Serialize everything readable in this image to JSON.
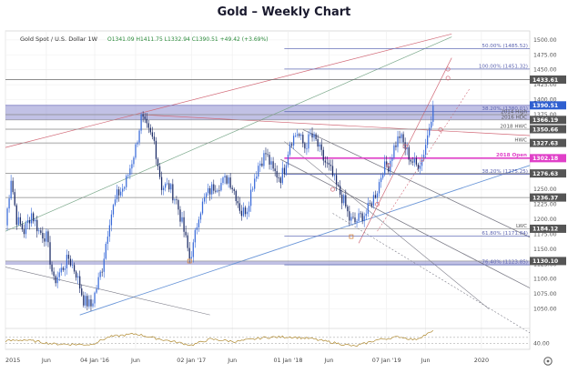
{
  "header": {
    "title": "Gold – Weekly Chart"
  },
  "chart_data": {
    "type": "candlestick",
    "title": "Gold – Weekly Chart",
    "instrument_label": "Gold Spot / U.S. Dollar  1W",
    "ohlc_readout": "O1341.09  H1411.75  L1332.94  C1390.51  +49.42 (+3.69%)",
    "ylim": [
      1025,
      1515
    ],
    "y_ticks": [
      1050,
      1075,
      1100,
      1125,
      1150,
      1175,
      1200,
      1225,
      1250,
      1275,
      1300,
      1325,
      1350,
      1375,
      1400,
      1425,
      1450,
      1475,
      1500
    ],
    "x_ticks": [
      "2015",
      "Jun",
      "04 Jan '16",
      "Jun",
      "02 Jan '17",
      "Jun",
      "01 Jan '18",
      "Jun",
      "07 Jan '19",
      "Jun",
      "2020"
    ],
    "x_tick_weeks": [
      0,
      22,
      48,
      70,
      100,
      122,
      152,
      174,
      205,
      226,
      256
    ],
    "total_weeks": 282,
    "series": [
      {
        "kind": "weekly_close",
        "anchors": [
          [
            0,
            1190
          ],
          [
            3,
            1270
          ],
          [
            6,
            1200
          ],
          [
            10,
            1180
          ],
          [
            14,
            1210
          ],
          [
            18,
            1180
          ],
          [
            22,
            1170
          ],
          [
            26,
            1095
          ],
          [
            30,
            1115
          ],
          [
            34,
            1135
          ],
          [
            38,
            1110
          ],
          [
            42,
            1065
          ],
          [
            46,
            1055
          ],
          [
            48,
            1075
          ],
          [
            52,
            1120
          ],
          [
            56,
            1200
          ],
          [
            60,
            1240
          ],
          [
            64,
            1255
          ],
          [
            66,
            1275
          ],
          [
            70,
            1320
          ],
          [
            73,
            1370
          ],
          [
            77,
            1345
          ],
          [
            80,
            1330
          ],
          [
            84,
            1255
          ],
          [
            88,
            1255
          ],
          [
            92,
            1230
          ],
          [
            96,
            1180
          ],
          [
            99,
            1135
          ],
          [
            101,
            1155
          ],
          [
            104,
            1210
          ],
          [
            108,
            1240
          ],
          [
            112,
            1255
          ],
          [
            116,
            1260
          ],
          [
            120,
            1270
          ],
          [
            124,
            1240
          ],
          [
            127,
            1210
          ],
          [
            130,
            1220
          ],
          [
            133,
            1260
          ],
          [
            136,
            1290
          ],
          [
            140,
            1310
          ],
          [
            144,
            1280
          ],
          [
            148,
            1270
          ],
          [
            150,
            1285
          ],
          [
            153,
            1330
          ],
          [
            157,
            1345
          ],
          [
            161,
            1320
          ],
          [
            164,
            1340
          ],
          [
            167,
            1330
          ],
          [
            171,
            1300
          ],
          [
            175,
            1280
          ],
          [
            178,
            1255
          ],
          [
            182,
            1230
          ],
          [
            185,
            1200
          ],
          [
            188,
            1195
          ],
          [
            191,
            1205
          ],
          [
            194,
            1210
          ],
          [
            197,
            1230
          ],
          [
            200,
            1250
          ],
          [
            203,
            1285
          ],
          [
            206,
            1290
          ],
          [
            209,
            1320
          ],
          [
            212,
            1340
          ],
          [
            215,
            1320
          ],
          [
            218,
            1300
          ],
          [
            221,
            1290
          ],
          [
            224,
            1300
          ],
          [
            227,
            1340
          ],
          [
            230,
            1390
          ]
        ],
        "rsi_anchors": [
          [
            0,
            48
          ],
          [
            10,
            52
          ],
          [
            26,
            38
          ],
          [
            46,
            36
          ],
          [
            56,
            62
          ],
          [
            70,
            72
          ],
          [
            80,
            58
          ],
          [
            92,
            44
          ],
          [
            100,
            34
          ],
          [
            110,
            54
          ],
          [
            124,
            46
          ],
          [
            140,
            60
          ],
          [
            153,
            62
          ],
          [
            164,
            56
          ],
          [
            175,
            44
          ],
          [
            188,
            30
          ],
          [
            200,
            52
          ],
          [
            212,
            62
          ],
          [
            220,
            52
          ],
          [
            230,
            80
          ]
        ]
      }
    ],
    "horizontal_levels": [
      {
        "price": 1485.52,
        "label": "50.00% (1485.52)",
        "style": "fib"
      },
      {
        "price": 1451.32,
        "label": "100.00% (1451.32)",
        "style": "fib"
      },
      {
        "price": 1433.61,
        "label": "",
        "style": "level"
      },
      {
        "price": 1390.51,
        "label": "",
        "style": "zone_top"
      },
      {
        "price": 1380.01,
        "label": "38.20% (1380.01)",
        "style": "fib"
      },
      {
        "price": 1375,
        "label": "2014 High",
        "style": "level"
      },
      {
        "price": 1366.19,
        "label": "2016 HDC",
        "style": "level"
      },
      {
        "price": 1350.66,
        "label": "2018 HWC",
        "style": "level"
      },
      {
        "price": 1327.63,
        "label": "HWC",
        "style": "level"
      },
      {
        "price": 1302.18,
        "label": "2018 Open",
        "style": "open"
      },
      {
        "price": 1276.63,
        "label": "",
        "style": "level"
      },
      {
        "price": 1275.25,
        "label": "38.20% (1275.25)",
        "style": "fib"
      },
      {
        "price": 1236.37,
        "label": "",
        "style": "level"
      },
      {
        "price": 1184.12,
        "label": "LWC",
        "style": "level"
      },
      {
        "price": 1171.84,
        "label": "61.80% (1171.84)",
        "style": "fib"
      },
      {
        "price": 1130.1,
        "label": "",
        "style": "level"
      },
      {
        "price": 1123.85,
        "label": "76.40% (1123.85)",
        "style": "fib"
      }
    ],
    "price_badges": [
      {
        "price": 1390.51,
        "text": "1390.51",
        "color": "#2f5fd0"
      },
      {
        "price": 1433.61,
        "text": "1433.61",
        "color": "#555555"
      },
      {
        "price": 1366.19,
        "text": "1366.19",
        "color": "#555555"
      },
      {
        "price": 1350.66,
        "text": "1350.66",
        "color": "#555555"
      },
      {
        "price": 1327.63,
        "text": "1327.63",
        "color": "#555555"
      },
      {
        "price": 1302.18,
        "text": "1302.18",
        "color": "#e040c8"
      },
      {
        "price": 1276.63,
        "text": "1276.63",
        "color": "#555555"
      },
      {
        "price": 1236.37,
        "text": "1236.37",
        "color": "#555555"
      },
      {
        "price": 1184.12,
        "text": "1184.12",
        "color": "#555555"
      },
      {
        "price": 1130.1,
        "text": "1130.10",
        "color": "#555555"
      }
    ],
    "indicator": {
      "name": "RSI",
      "label": "40.00",
      "lower_line": 40,
      "upper_line": 60
    },
    "colors": {
      "bullish": "#3a6bd9",
      "bearish": "#1a2a66",
      "zone": "#8e8ecf",
      "open_line": "#e040c8",
      "pitchfork": "#7a7a86",
      "red_line": "#d26a78",
      "blue_line": "#6a96d8",
      "green_line": "#7aa88a"
    }
  }
}
